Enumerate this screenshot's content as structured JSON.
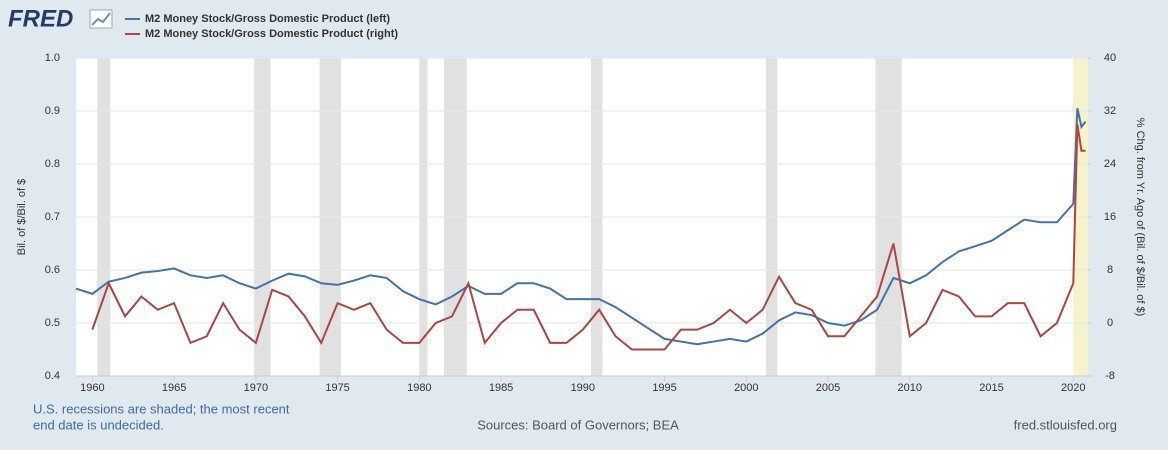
{
  "chart_data": {
    "type": "line",
    "logo": "FRED",
    "x": [
      1959,
      1960,
      1961,
      1962,
      1963,
      1964,
      1965,
      1966,
      1967,
      1968,
      1969,
      1970,
      1971,
      1972,
      1973,
      1974,
      1975,
      1976,
      1977,
      1978,
      1979,
      1980,
      1981,
      1982,
      1983,
      1984,
      1985,
      1986,
      1987,
      1988,
      1989,
      1990,
      1991,
      1992,
      1993,
      1994,
      1995,
      1996,
      1997,
      1998,
      1999,
      2000,
      2001,
      2002,
      2003,
      2004,
      2005,
      2006,
      2007,
      2008,
      2009,
      2010,
      2011,
      2012,
      2013,
      2014,
      2015,
      2016,
      2017,
      2018,
      2019,
      2020,
      2020.25,
      2020.5,
      2020.75
    ],
    "series": [
      {
        "name": "M2 Money Stock/Gross Domestic Product (left)",
        "color": "#4572a7",
        "axis": "y",
        "values": [
          0.565,
          0.555,
          0.578,
          0.585,
          0.595,
          0.598,
          0.603,
          0.59,
          0.585,
          0.59,
          0.575,
          0.565,
          0.58,
          0.593,
          0.588,
          0.575,
          0.572,
          0.58,
          0.59,
          0.585,
          0.56,
          0.545,
          0.535,
          0.55,
          0.57,
          0.555,
          0.555,
          0.575,
          0.575,
          0.565,
          0.545,
          0.545,
          0.545,
          0.53,
          0.51,
          0.49,
          0.47,
          0.465,
          0.46,
          0.465,
          0.47,
          0.465,
          0.48,
          0.505,
          0.52,
          0.515,
          0.5,
          0.495,
          0.505,
          0.525,
          0.585,
          0.575,
          0.59,
          0.615,
          0.635,
          0.645,
          0.655,
          0.675,
          0.695,
          0.69,
          0.69,
          0.725,
          0.905,
          0.87,
          0.88
        ]
      },
      {
        "name": "M2 Money Stock/Gross Domestic Product (right)",
        "color": "#aa4643",
        "axis": "y2",
        "values": [
          null,
          -1,
          6,
          1,
          4,
          2,
          3,
          -3,
          -2,
          3,
          -1,
          -3,
          5,
          4,
          1,
          -3,
          3,
          2,
          3,
          -1,
          -3,
          -3,
          0,
          1,
          6,
          -3,
          0,
          2,
          2,
          -3,
          -3,
          -1,
          2,
          -2,
          -4,
          -4,
          -4,
          -1,
          -1,
          0,
          2,
          0,
          2,
          7,
          3,
          2,
          -2,
          -2,
          1,
          4,
          12,
          -2,
          0,
          5,
          4,
          1,
          1,
          3,
          3,
          -2,
          0,
          6,
          30,
          26,
          26
        ]
      }
    ],
    "xlim": [
      1959,
      2020.9
    ],
    "xticks": [
      1960,
      1965,
      1970,
      1975,
      1980,
      1985,
      1990,
      1995,
      2000,
      2005,
      2010,
      2015,
      2020
    ],
    "ylim": [
      0.4,
      1.0
    ],
    "yticks": [
      0.4,
      0.5,
      0.6,
      0.7,
      0.8,
      0.9,
      {
        "value": 1.0,
        "label": "1.0"
      }
    ],
    "y2lim": [
      -8,
      40
    ],
    "y2ticks": [
      -8,
      0,
      8,
      16,
      24,
      32,
      40
    ],
    "ylabel": "Bil. of $/Bil. of $",
    "y2label": "% Chg. from Yr. Ago of (Bil. of $/Bil. of $)",
    "grid": true,
    "recessions": [
      [
        1960.3,
        1961.1
      ],
      [
        1969.9,
        1970.9
      ],
      [
        1973.9,
        1975.2
      ],
      [
        1980.0,
        1980.5
      ],
      [
        1981.5,
        1982.9
      ],
      [
        1990.5,
        1991.2
      ],
      [
        2001.2,
        2001.9
      ],
      [
        2007.9,
        2009.5
      ],
      [
        2020.0,
        2020.9
      ]
    ],
    "recession_color": "#e1e1e1",
    "current_recession_color": "#f5f2cc",
    "notes": [
      "U.S. recessions are shaded; the most recent",
      "end date is undecided."
    ],
    "source": "Sources: Board of Governors; BEA",
    "site": "fred.stlouisfed.org"
  }
}
